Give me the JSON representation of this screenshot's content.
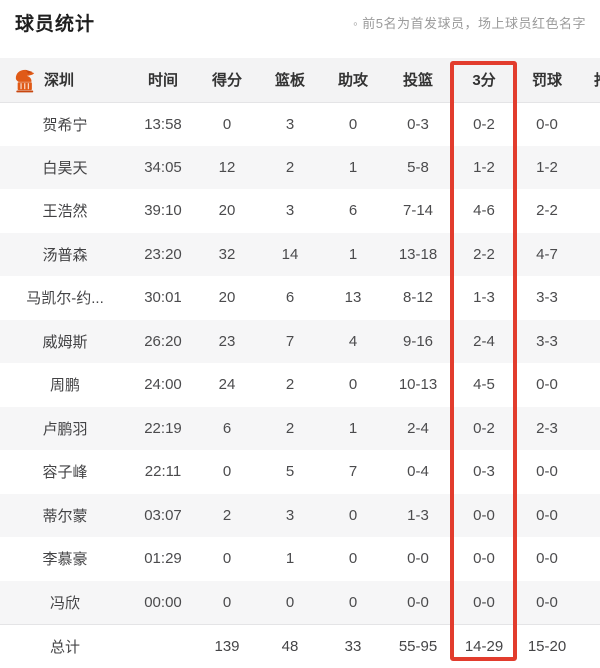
{
  "header": {
    "title": "球员统计",
    "note_bullet": "◦",
    "note": "前5名为首发球员，场上球员红色名字"
  },
  "table": {
    "team_name": "深圳",
    "team_logo_icon": "shenzhen-leopards-logo",
    "columns": [
      "时间",
      "得分",
      "篮板",
      "助攻",
      "投篮",
      "3分",
      "罚球",
      "抢断"
    ],
    "highlight_column": "3分",
    "rows": [
      {
        "name": "贺希宁",
        "time": "13:58",
        "pts": "0",
        "reb": "3",
        "ast": "0",
        "fg": "0-3",
        "tp": "0-2",
        "ft": "0-0",
        "stl": ""
      },
      {
        "name": "白昊天",
        "time": "34:05",
        "pts": "12",
        "reb": "2",
        "ast": "1",
        "fg": "5-8",
        "tp": "1-2",
        "ft": "1-2",
        "stl": ""
      },
      {
        "name": "王浩然",
        "time": "39:10",
        "pts": "20",
        "reb": "3",
        "ast": "6",
        "fg": "7-14",
        "tp": "4-6",
        "ft": "2-2",
        "stl": ""
      },
      {
        "name": "汤普森",
        "time": "23:20",
        "pts": "32",
        "reb": "14",
        "ast": "1",
        "fg": "13-18",
        "tp": "2-2",
        "ft": "4-7",
        "stl": ""
      },
      {
        "name": "马凯尔-约...",
        "time": "30:01",
        "pts": "20",
        "reb": "6",
        "ast": "13",
        "fg": "8-12",
        "tp": "1-3",
        "ft": "3-3",
        "stl": ""
      },
      {
        "name": "威姆斯",
        "time": "26:20",
        "pts": "23",
        "reb": "7",
        "ast": "4",
        "fg": "9-16",
        "tp": "2-4",
        "ft": "3-3",
        "stl": ""
      },
      {
        "name": "周鹏",
        "time": "24:00",
        "pts": "24",
        "reb": "2",
        "ast": "0",
        "fg": "10-13",
        "tp": "4-5",
        "ft": "0-0",
        "stl": ""
      },
      {
        "name": "卢鹏羽",
        "time": "22:19",
        "pts": "6",
        "reb": "2",
        "ast": "1",
        "fg": "2-4",
        "tp": "0-2",
        "ft": "2-3",
        "stl": ""
      },
      {
        "name": "容子峰",
        "time": "22:11",
        "pts": "0",
        "reb": "5",
        "ast": "7",
        "fg": "0-4",
        "tp": "0-3",
        "ft": "0-0",
        "stl": ""
      },
      {
        "name": "蒂尔蒙",
        "time": "03:07",
        "pts": "2",
        "reb": "3",
        "ast": "0",
        "fg": "1-3",
        "tp": "0-0",
        "ft": "0-0",
        "stl": ""
      },
      {
        "name": "李慕豪",
        "time": "01:29",
        "pts": "0",
        "reb": "1",
        "ast": "0",
        "fg": "0-0",
        "tp": "0-0",
        "ft": "0-0",
        "stl": ""
      },
      {
        "name": "冯欣",
        "time": "00:00",
        "pts": "0",
        "reb": "0",
        "ast": "0",
        "fg": "0-0",
        "tp": "0-0",
        "ft": "0-0",
        "stl": ""
      }
    ],
    "total": {
      "name": "总计",
      "time": "",
      "pts": "139",
      "reb": "48",
      "ast": "33",
      "fg": "55-95",
      "tp": "14-29",
      "ft": "15-20",
      "stl": ""
    }
  },
  "colors": {
    "highlight_red": "#e23c2d",
    "logo_orange": "#e05a17",
    "logo_orange_dark": "#c8470f",
    "header_bg": "#f3f3f4",
    "stripe_bg": "#f6f6f7",
    "note_gray": "#9b9b9b"
  }
}
